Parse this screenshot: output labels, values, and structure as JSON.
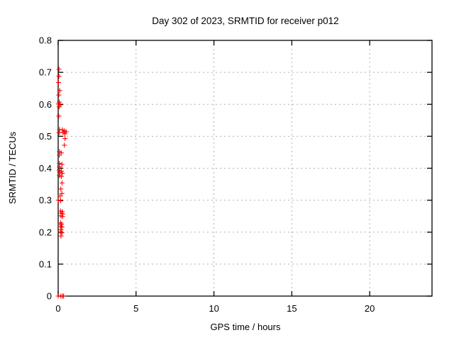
{
  "window": {
    "background": "#ffffff"
  },
  "chart_data": {
    "type": "scatter",
    "title": "Day 302 of 2023, SRMTID for receiver p012",
    "xlabel": "GPS time / hours",
    "ylabel": "SRMTID / TECUs",
    "xlim": [
      0,
      24
    ],
    "ylim": [
      0,
      0.8
    ],
    "x_ticks": [
      0,
      5,
      10,
      15,
      20
    ],
    "x_tick_labels": [
      "0",
      "5",
      "10",
      "15",
      "20"
    ],
    "y_ticks": [
      0,
      0.1,
      0.2,
      0.3,
      0.4,
      0.5,
      0.6,
      0.7,
      0.8
    ],
    "y_tick_labels": [
      "0",
      "0.1",
      "0.2",
      "0.3",
      "0.4",
      "0.5",
      "0.6",
      "0.7",
      "0.8"
    ],
    "grid": true,
    "grid_style": "dashed",
    "legend": "none",
    "marker": "plus",
    "colors": {
      "marker": "#ff0000",
      "grid": "#b0b0b0",
      "frame": "#000000",
      "background": "#ffffff"
    },
    "series": [
      {
        "name": "SRMTID",
        "points": [
          [
            0.05,
            0.71
          ],
          [
            0.05,
            0.688
          ],
          [
            0.02,
            0.668
          ],
          [
            0.1,
            0.643
          ],
          [
            0.04,
            0.629
          ],
          [
            0.07,
            0.607
          ],
          [
            0.02,
            0.601
          ],
          [
            0.13,
            0.598
          ],
          [
            0.06,
            0.592
          ],
          [
            0.04,
            0.563
          ],
          [
            0.09,
            0.521
          ],
          [
            0.27,
            0.52
          ],
          [
            0.4,
            0.517
          ],
          [
            0.51,
            0.514
          ],
          [
            0.32,
            0.512
          ],
          [
            0.06,
            0.511
          ],
          [
            0.43,
            0.508
          ],
          [
            0.44,
            0.493
          ],
          [
            0.4,
            0.472
          ],
          [
            0.08,
            0.452
          ],
          [
            0.2,
            0.448
          ],
          [
            0.08,
            0.441
          ],
          [
            0.08,
            0.415
          ],
          [
            0.24,
            0.412
          ],
          [
            0.08,
            0.404
          ],
          [
            0.07,
            0.394
          ],
          [
            0.2,
            0.391
          ],
          [
            0.1,
            0.387
          ],
          [
            0.27,
            0.384
          ],
          [
            0.07,
            0.377
          ],
          [
            0.2,
            0.374
          ],
          [
            0.25,
            0.354
          ],
          [
            0.17,
            0.335
          ],
          [
            0.24,
            0.321
          ],
          [
            0.13,
            0.313
          ],
          [
            0.01,
            0.3
          ],
          [
            0.16,
            0.298
          ],
          [
            0.15,
            0.266
          ],
          [
            0.27,
            0.264
          ],
          [
            0.18,
            0.259
          ],
          [
            0.29,
            0.257
          ],
          [
            0.18,
            0.251
          ],
          [
            0.28,
            0.249
          ],
          [
            0.15,
            0.229
          ],
          [
            0.21,
            0.225
          ],
          [
            0.15,
            0.219
          ],
          [
            0.24,
            0.216
          ],
          [
            0.18,
            0.208
          ],
          [
            0.15,
            0.201
          ],
          [
            0.24,
            0.198
          ],
          [
            0.18,
            0.188
          ],
          [
            0.0,
            0.0
          ],
          [
            0.17,
            0.0
          ],
          [
            0.28,
            0.0
          ],
          [
            0.35,
            0.0
          ]
        ]
      }
    ]
  }
}
